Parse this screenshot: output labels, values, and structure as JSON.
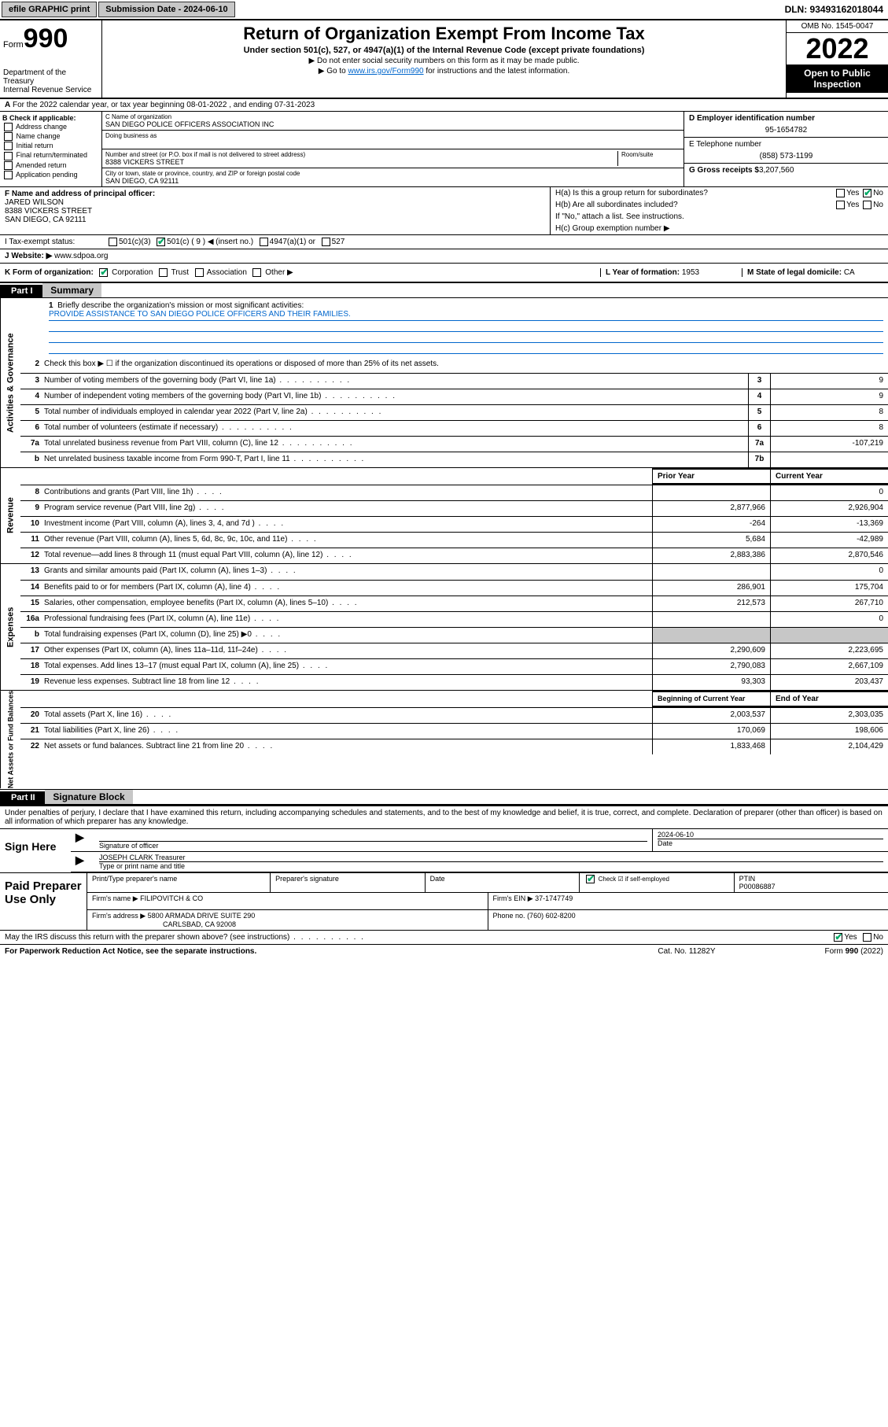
{
  "topbar": {
    "efile": "efile GRAPHIC print",
    "submission": "Submission Date - 2024-06-10",
    "dln": "DLN: 93493162018044"
  },
  "header": {
    "form_label": "Form",
    "form_no": "990",
    "dept": "Department of the Treasury",
    "irs": "Internal Revenue Service",
    "title": "Return of Organization Exempt From Income Tax",
    "subtitle": "Under section 501(c), 527, or 4947(a)(1) of the Internal Revenue Code (except private foundations)",
    "note1": "▶ Do not enter social security numbers on this form as it may be made public.",
    "note2_pre": "▶ Go to ",
    "note2_link": "www.irs.gov/Form990",
    "note2_post": " for instructions and the latest information.",
    "omb": "OMB No. 1545-0047",
    "year": "2022",
    "open": "Open to Public Inspection"
  },
  "row_a": "For the 2022 calendar year, or tax year beginning 08-01-2022   , and ending 07-31-2023",
  "row_a_label": "A",
  "section_b": {
    "title": "B Check if applicable:",
    "items": [
      "Address change",
      "Name change",
      "Initial return",
      "Final return/terminated",
      "Amended return",
      "Application pending"
    ]
  },
  "section_c": {
    "name_lbl": "C Name of organization",
    "name": "SAN DIEGO POLICE OFFICERS ASSOCIATION INC",
    "dba_lbl": "Doing business as",
    "addr_lbl": "Number and street (or P.O. box if mail is not delivered to street address)",
    "room_lbl": "Room/suite",
    "addr": "8388 VICKERS STREET",
    "city_lbl": "City or town, state or province, country, and ZIP or foreign postal code",
    "city": "SAN DIEGO, CA  92111"
  },
  "section_d": {
    "ein_lbl": "D Employer identification number",
    "ein": "95-1654782",
    "phone_lbl": "E Telephone number",
    "phone": "(858) 573-1199",
    "gross_lbl": "G Gross receipts $",
    "gross": "3,207,560"
  },
  "section_f": {
    "lbl": "F Name and address of principal officer:",
    "name": "JARED WILSON",
    "addr1": "8388 VICKERS STREET",
    "addr2": "SAN DIEGO, CA  92111"
  },
  "section_h": {
    "ha": "H(a)  Is this a group return for subordinates?",
    "hb": "H(b)  Are all subordinates included?",
    "hb_note": "If \"No,\" attach a list. See instructions.",
    "hc": "H(c)  Group exemption number ▶",
    "yes": "Yes",
    "no": "No"
  },
  "row_i": {
    "lbl": "I   Tax-exempt status:",
    "opts": [
      "501(c)(3)",
      "501(c) ( 9 ) ◀ (insert no.)",
      "4947(a)(1) or",
      "527"
    ]
  },
  "row_j": {
    "lbl": "J   Website: ▶",
    "val": "www.sdpoa.org"
  },
  "row_k": {
    "lbl": "K Form of organization:",
    "opts": [
      "Corporation",
      "Trust",
      "Association",
      "Other ▶"
    ],
    "year_lbl": "L Year of formation:",
    "year": "1953",
    "state_lbl": "M State of legal domicile:",
    "state": "CA"
  },
  "part1": {
    "hdr": "Part I",
    "title": "Summary",
    "line1_lbl": "1",
    "line1": "Briefly describe the organization's mission or most significant activities:",
    "mission": "PROVIDE ASSISTANCE TO SAN DIEGO POLICE OFFICERS AND THEIR FAMILIES.",
    "tabs": {
      "gov": "Activities & Governance",
      "rev": "Revenue",
      "exp": "Expenses",
      "net": "Net Assets or Fund Balances"
    },
    "lines_gov": [
      {
        "n": "2",
        "t": "Check this box ▶ ☐  if the organization discontinued its operations or disposed of more than 25% of its net assets.",
        "box": "",
        "v": ""
      },
      {
        "n": "3",
        "t": "Number of voting members of the governing body (Part VI, line 1a)",
        "box": "3",
        "v": "9"
      },
      {
        "n": "4",
        "t": "Number of independent voting members of the governing body (Part VI, line 1b)",
        "box": "4",
        "v": "9"
      },
      {
        "n": "5",
        "t": "Total number of individuals employed in calendar year 2022 (Part V, line 2a)",
        "box": "5",
        "v": "8"
      },
      {
        "n": "6",
        "t": "Total number of volunteers (estimate if necessary)",
        "box": "6",
        "v": "8"
      },
      {
        "n": "7a",
        "t": "Total unrelated business revenue from Part VIII, column (C), line 12",
        "box": "7a",
        "v": "-107,219"
      },
      {
        "n": "b",
        "t": "Net unrelated business taxable income from Form 990-T, Part I, line 11",
        "box": "7b",
        "v": ""
      }
    ],
    "col_hdr": {
      "prior": "Prior Year",
      "current": "Current Year"
    },
    "lines_rev": [
      {
        "n": "8",
        "t": "Contributions and grants (Part VIII, line 1h)",
        "p": "",
        "c": "0"
      },
      {
        "n": "9",
        "t": "Program service revenue (Part VIII, line 2g)",
        "p": "2,877,966",
        "c": "2,926,904"
      },
      {
        "n": "10",
        "t": "Investment income (Part VIII, column (A), lines 3, 4, and 7d )",
        "p": "-264",
        "c": "-13,369"
      },
      {
        "n": "11",
        "t": "Other revenue (Part VIII, column (A), lines 5, 6d, 8c, 9c, 10c, and 11e)",
        "p": "5,684",
        "c": "-42,989"
      },
      {
        "n": "12",
        "t": "Total revenue—add lines 8 through 11 (must equal Part VIII, column (A), line 12)",
        "p": "2,883,386",
        "c": "2,870,546"
      }
    ],
    "lines_exp": [
      {
        "n": "13",
        "t": "Grants and similar amounts paid (Part IX, column (A), lines 1–3)",
        "p": "",
        "c": "0"
      },
      {
        "n": "14",
        "t": "Benefits paid to or for members (Part IX, column (A), line 4)",
        "p": "286,901",
        "c": "175,704"
      },
      {
        "n": "15",
        "t": "Salaries, other compensation, employee benefits (Part IX, column (A), lines 5–10)",
        "p": "212,573",
        "c": "267,710"
      },
      {
        "n": "16a",
        "t": "Professional fundraising fees (Part IX, column (A), line 11e)",
        "p": "",
        "c": "0"
      },
      {
        "n": "b",
        "t": "Total fundraising expenses (Part IX, column (D), line 25) ▶0",
        "p": "grey",
        "c": "grey"
      },
      {
        "n": "17",
        "t": "Other expenses (Part IX, column (A), lines 11a–11d, 11f–24e)",
        "p": "2,290,609",
        "c": "2,223,695"
      },
      {
        "n": "18",
        "t": "Total expenses. Add lines 13–17 (must equal Part IX, column (A), line 25)",
        "p": "2,790,083",
        "c": "2,667,109"
      },
      {
        "n": "19",
        "t": "Revenue less expenses. Subtract line 18 from line 12",
        "p": "93,303",
        "c": "203,437"
      }
    ],
    "col_hdr2": {
      "prior": "Beginning of Current Year",
      "current": "End of Year"
    },
    "lines_net": [
      {
        "n": "20",
        "t": "Total assets (Part X, line 16)",
        "p": "2,003,537",
        "c": "2,303,035"
      },
      {
        "n": "21",
        "t": "Total liabilities (Part X, line 26)",
        "p": "170,069",
        "c": "198,606"
      },
      {
        "n": "22",
        "t": "Net assets or fund balances. Subtract line 21 from line 20",
        "p": "1,833,468",
        "c": "2,104,429"
      }
    ]
  },
  "part2": {
    "hdr": "Part II",
    "title": "Signature Block",
    "decl": "Under penalties of perjury, I declare that I have examined this return, including accompanying schedules and statements, and to the best of my knowledge and belief, it is true, correct, and complete. Declaration of preparer (other than officer) is based on all information of which preparer has any knowledge.",
    "sign_here": "Sign Here",
    "sig_officer": "Signature of officer",
    "sig_date_lbl": "Date",
    "sig_date": "2024-06-10",
    "sig_name": "JOSEPH CLARK  Treasurer",
    "sig_name_lbl": "Type or print name and title",
    "paid": "Paid Preparer Use Only",
    "prep_name_lbl": "Print/Type preparer's name",
    "prep_sig_lbl": "Preparer's signature",
    "prep_date_lbl": "Date",
    "prep_check": "Check ☑ if self-employed",
    "ptin_lbl": "PTIN",
    "ptin": "P00086887",
    "firm_name_lbl": "Firm's name    ▶",
    "firm_name": "FILIPOVITCH & CO",
    "firm_ein_lbl": "Firm's EIN ▶",
    "firm_ein": "37-1747749",
    "firm_addr_lbl": "Firm's address ▶",
    "firm_addr1": "5800 ARMADA DRIVE SUITE 290",
    "firm_addr2": "CARLSBAD, CA  92008",
    "firm_phone_lbl": "Phone no.",
    "firm_phone": "(760) 602-8200",
    "discuss": "May the IRS discuss this return with the preparer shown above? (see instructions)",
    "yes": "Yes",
    "no": "No"
  },
  "footer": {
    "pra": "For Paperwork Reduction Act Notice, see the separate instructions.",
    "cat": "Cat. No. 11282Y",
    "form": "Form 990 (2022)"
  },
  "colors": {
    "link": "#0066cc",
    "grey": "#c7c7c7",
    "check": "#00aa66"
  }
}
